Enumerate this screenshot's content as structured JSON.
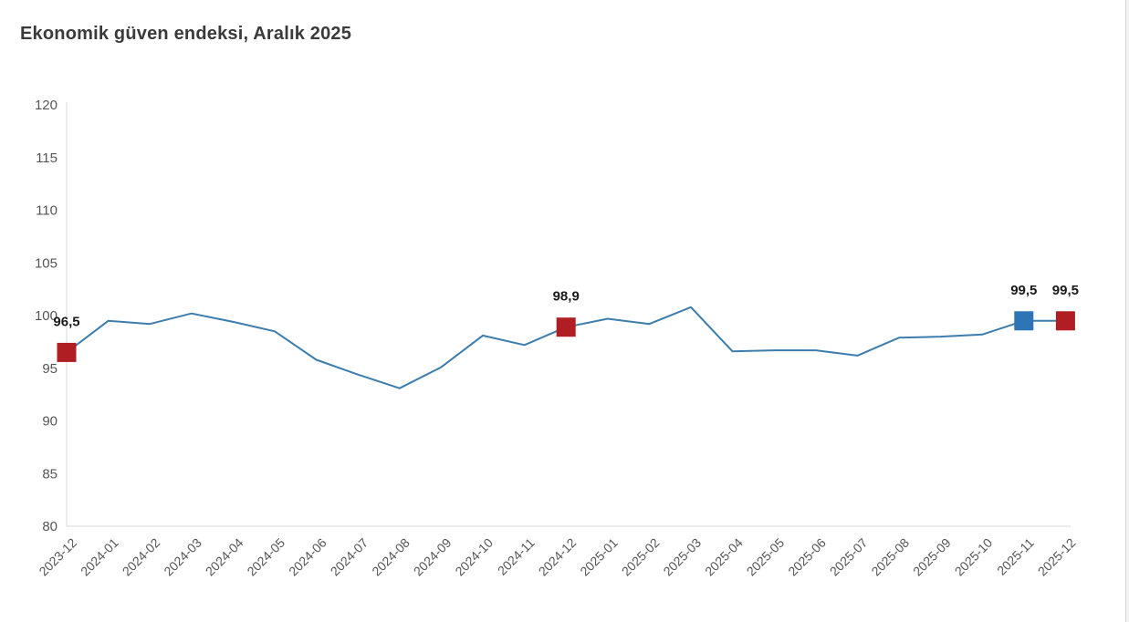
{
  "title": "Ekonomik güven endeksi, Aralık 2025",
  "colors": {
    "line": "#3c7dad",
    "marker_red": "#b01e24",
    "marker_blue": "#2e75b6",
    "axis_line": "#d9d9d9",
    "tick_text": "#555555",
    "title_text": "#3a3a3a",
    "point_label_text": "#1a1a1a",
    "background": "#ffffff"
  },
  "chart_data": {
    "type": "line",
    "title": "Ekonomik güven endeksi, Aralık 2025",
    "xlabel": "",
    "ylabel": "",
    "ylim": [
      80,
      120
    ],
    "ytick_step": 5,
    "grid": false,
    "legend": null,
    "x": [
      "2023-12",
      "2024-01",
      "2024-02",
      "2024-03",
      "2024-04",
      "2024-05",
      "2024-06",
      "2024-07",
      "2024-08",
      "2024-09",
      "2024-10",
      "2024-11",
      "2024-12",
      "2025-01",
      "2025-02",
      "2025-03",
      "2025-04",
      "2025-05",
      "2025-06",
      "2025-07",
      "2025-08",
      "2025-09",
      "2025-10",
      "2025-11",
      "2025-12"
    ],
    "values": [
      96.5,
      99.5,
      99.2,
      100.2,
      99.4,
      98.5,
      95.8,
      94.4,
      93.1,
      95.1,
      98.1,
      97.2,
      98.9,
      99.7,
      99.2,
      100.8,
      96.6,
      96.7,
      96.7,
      96.2,
      97.9,
      98.0,
      98.2,
      99.5,
      99.5
    ],
    "highlighted_points": [
      {
        "x": "2023-12",
        "value": 96.5,
        "label": "96,5",
        "marker": "square",
        "color": "#b01e24",
        "label_position": "above"
      },
      {
        "x": "2024-12",
        "value": 98.9,
        "label": "98,9",
        "marker": "square",
        "color": "#b01e24",
        "label_position": "above"
      },
      {
        "x": "2025-11",
        "value": 99.5,
        "label": "99,5",
        "marker": "square",
        "color": "#2e75b6",
        "label_position": "above"
      },
      {
        "x": "2025-12",
        "value": 99.5,
        "label": "99,5",
        "marker": "square",
        "color": "#b01e24",
        "label_position": "above"
      }
    ]
  }
}
